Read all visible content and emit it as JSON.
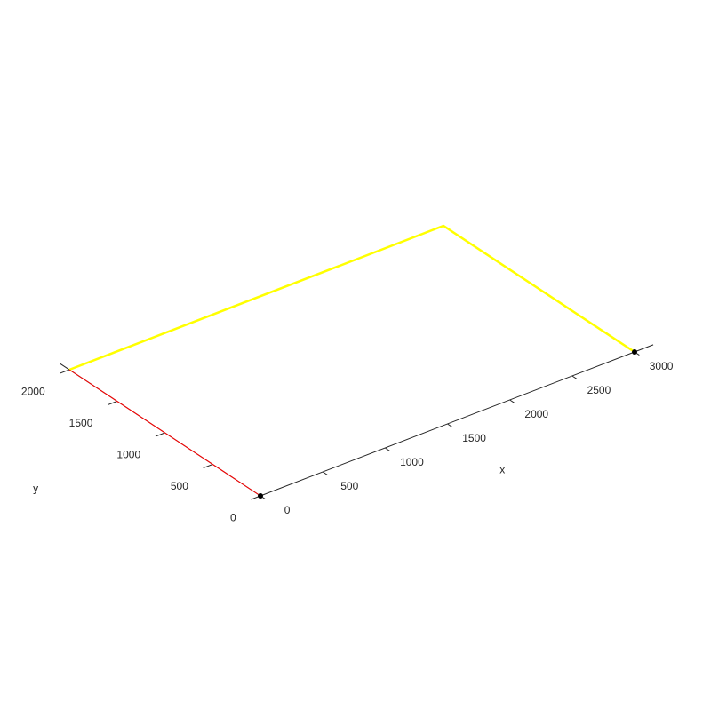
{
  "chart_data": {
    "type": "line",
    "projection": "3d-view",
    "xlabel": "x",
    "ylabel": "y",
    "xlim": [
      0,
      3000
    ],
    "ylim": [
      0,
      2000
    ],
    "x_ticks": [
      0,
      500,
      1000,
      1500,
      2000,
      2500,
      3000
    ],
    "y_ticks": [
      0,
      500,
      1000,
      1500,
      2000
    ],
    "grid": false,
    "series": [
      {
        "color": "#ffff00",
        "points": [
          [
            3000,
            0
          ],
          [
            3000,
            2000
          ],
          [
            0,
            2000
          ]
        ]
      },
      {
        "color": "#ff0000",
        "points": [
          [
            0,
            0
          ],
          [
            0,
            2000
          ]
        ]
      }
    ],
    "markers": {
      "color": "#000000",
      "points": [
        [
          0,
          0
        ],
        [
          3000,
          0
        ]
      ]
    }
  }
}
